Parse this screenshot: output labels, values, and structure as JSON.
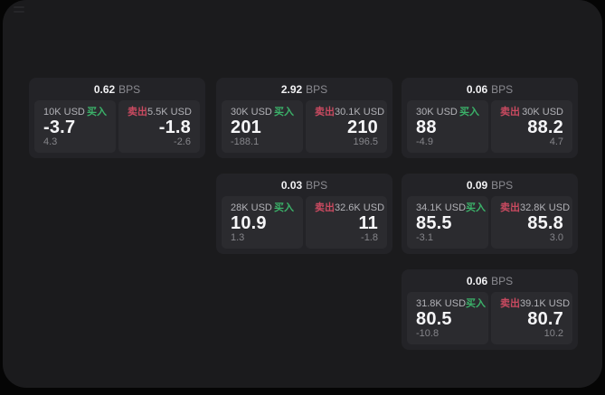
{
  "labels": {
    "buy": "买入",
    "sell": "卖出",
    "bps_unit": "BPS"
  },
  "colors": {
    "buy": "#3bb169",
    "sell": "#c94a60",
    "window_bg": "#1b1b1d",
    "card_bg": "#232327",
    "panel_bg": "#2b2b2f"
  },
  "cards": [
    {
      "bps": "0.62",
      "col": 0,
      "row": 0,
      "buy": {
        "amount": "10K USD",
        "value": "-3.7",
        "delta": "4.3"
      },
      "sell": {
        "amount": "5.5K USD",
        "value": "-1.8",
        "delta": "-2.6"
      }
    },
    {
      "bps": "2.92",
      "col": 1,
      "row": 0,
      "buy": {
        "amount": "30K USD",
        "value": "201",
        "delta": "-188.1"
      },
      "sell": {
        "amount": "30.1K USD",
        "value": "210",
        "delta": "196.5"
      }
    },
    {
      "bps": "0.06",
      "col": 2,
      "row": 0,
      "buy": {
        "amount": "30K USD",
        "value": "88",
        "delta": "-4.9"
      },
      "sell": {
        "amount": "30K USD",
        "value": "88.2",
        "delta": "4.7"
      }
    },
    {
      "bps": "0.03",
      "col": 1,
      "row": 1,
      "buy": {
        "amount": "28K USD",
        "value": "10.9",
        "delta": "1.3"
      },
      "sell": {
        "amount": "32.6K USD",
        "value": "11",
        "delta": "-1.8"
      }
    },
    {
      "bps": "0.09",
      "col": 2,
      "row": 1,
      "buy": {
        "amount": "34.1K USD",
        "value": "85.5",
        "delta": "-3.1"
      },
      "sell": {
        "amount": "32.8K USD",
        "value": "85.8",
        "delta": "3.0"
      }
    },
    {
      "bps": "0.06",
      "col": 2,
      "row": 2,
      "buy": {
        "amount": "31.8K USD",
        "value": "80.5",
        "delta": "-10.8"
      },
      "sell": {
        "amount": "39.1K USD",
        "value": "80.7",
        "delta": "10.2"
      }
    }
  ]
}
